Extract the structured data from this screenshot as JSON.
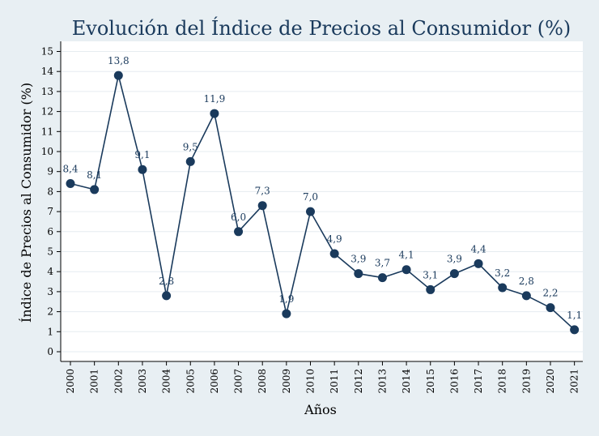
{
  "chart_data": {
    "type": "line",
    "title": "Evolución del Índice de Precios al Consumidor (%)",
    "xlabel": "Años",
    "ylabel": "Índice de Precios al Consumidor (%)",
    "categories": [
      "2000",
      "2001",
      "2002",
      "2003",
      "2004",
      "2005",
      "2006",
      "2007",
      "2008",
      "2009",
      "2010",
      "2011",
      "2012",
      "2013",
      "2014",
      "2015",
      "2016",
      "2017",
      "2018",
      "2019",
      "2020",
      "2021"
    ],
    "series": [
      {
        "values": [
          8.4,
          8.1,
          13.8,
          9.1,
          2.8,
          9.5,
          11.9,
          6.0,
          7.3,
          1.9,
          7.0,
          4.9,
          3.9,
          3.7,
          4.1,
          3.1,
          3.9,
          4.4,
          3.2,
          2.8,
          2.2,
          1.1
        ],
        "labels": [
          "8,4",
          "8,1",
          "13,8",
          "9,1",
          "2,8",
          "9,5",
          "11,9",
          "6,0",
          "7,3",
          "1,9",
          "7,0",
          "4,9",
          "3,9",
          "3,7",
          "4,1",
          "3,1",
          "3,9",
          "4,4",
          "3,2",
          "2,8",
          "2,2",
          "1,1"
        ]
      }
    ],
    "yticks": [
      "0",
      "1",
      "2",
      "3",
      "4",
      "5",
      "6",
      "7",
      "8",
      "9",
      "10",
      "11",
      "12",
      "13",
      "14",
      "15"
    ],
    "ylim": [
      0,
      15
    ],
    "grid": true,
    "colors": {
      "line": "#1a3a5c",
      "marker": "#1a3a5c",
      "grid": "#e6ecf0",
      "background": "#e8eff3",
      "plot_bg": "#ffffff"
    }
  }
}
